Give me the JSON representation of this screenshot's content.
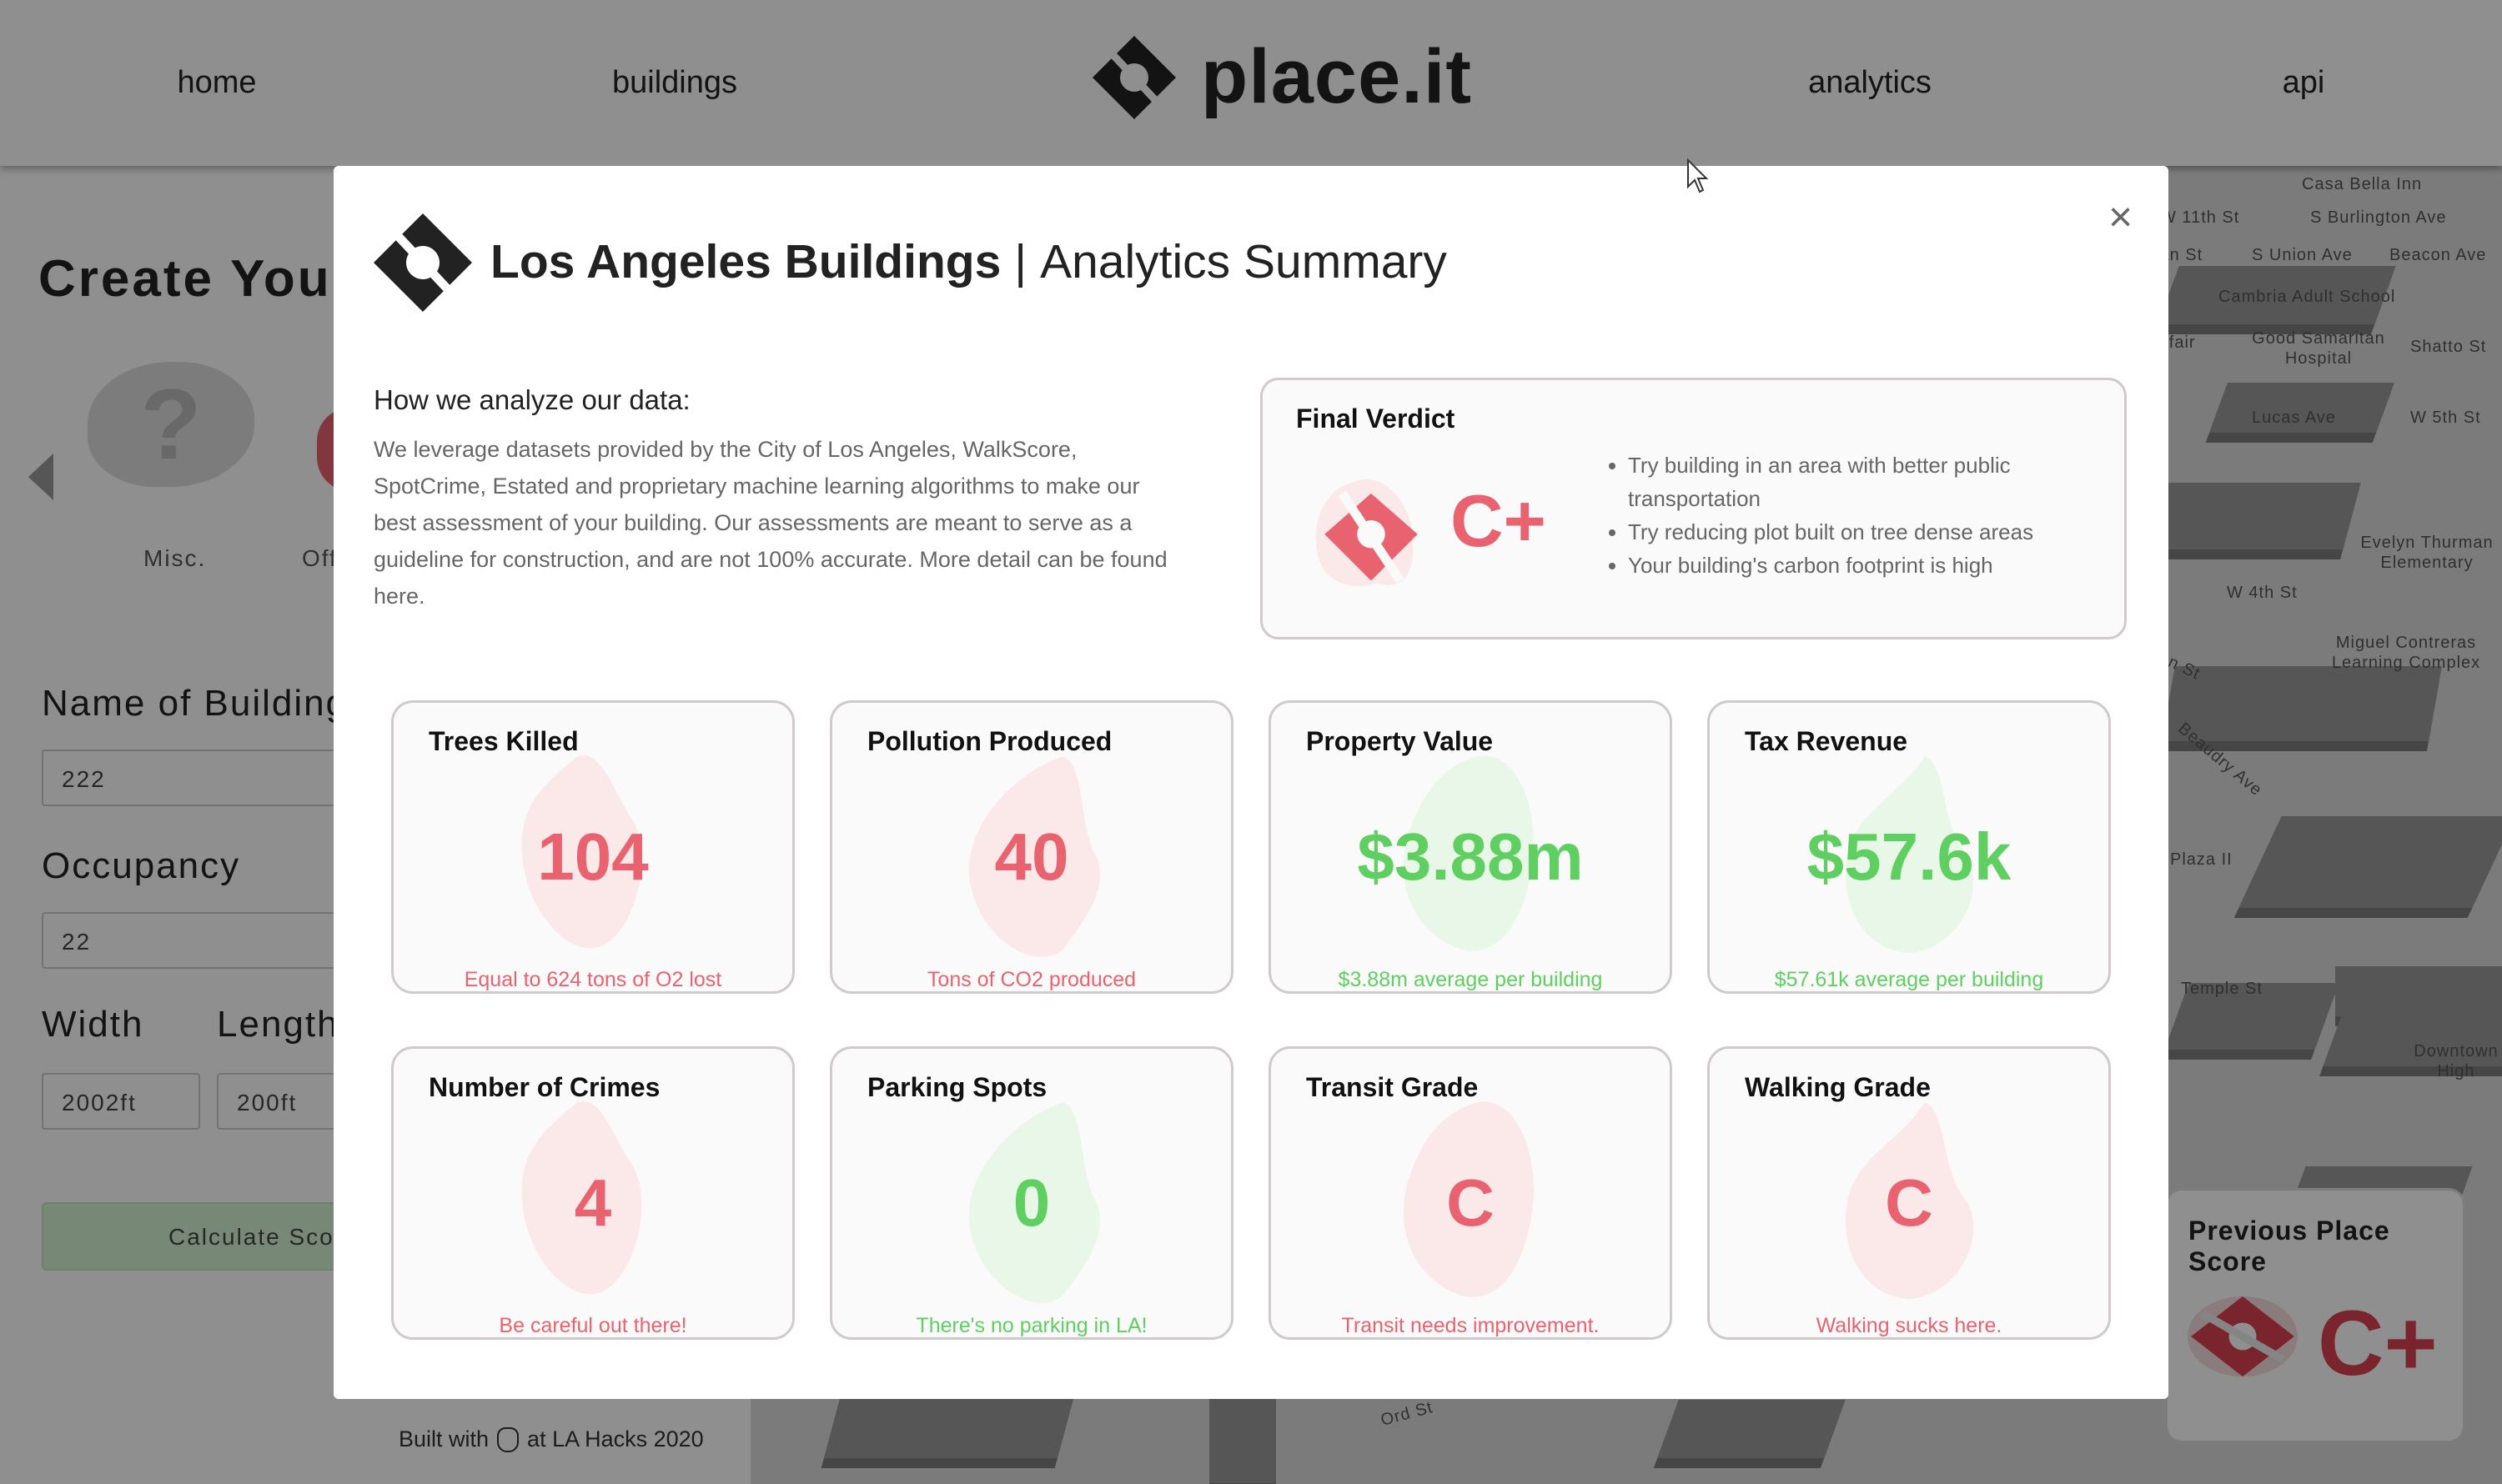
{
  "nav": {
    "home": "home",
    "buildings": "buildings",
    "brand": "place.it",
    "analytics": "analytics",
    "api": "api"
  },
  "background": {
    "create_title": "Create Your",
    "categories": [
      "Misc.",
      "Off"
    ],
    "name_label": "Name of Building",
    "name_value": "222",
    "occupancy_label": "Occupancy",
    "occupancy_value": "22",
    "width_label": "Width",
    "width_value": "2002ft",
    "length_label": "Length",
    "length_value": "200ft",
    "calculate_button": "Calculate Score",
    "footer_before": "Built with",
    "footer_after": "at LA Hacks 2020",
    "previous_score_title": "Previous Place Score",
    "previous_score_grade": "C+",
    "map_labels": [
      "Casa Bella Inn",
      "W 11th St",
      "S Burlington Ave",
      "Beacon Ave",
      "Grattan St",
      "S Union Ave",
      "Cambria Adult School",
      "Mayfair",
      "Good Samaritan Hospital",
      "Shatto St",
      "W 5th St",
      "Lucas Ave",
      "Evelyn Thurman Elementary",
      "W 4th St",
      "Boylston St",
      "Miguel Contreras Learning Complex",
      "Beaudry Ave",
      "Plaza II",
      "Temple St",
      "Downtown High",
      "Ord St"
    ]
  },
  "modal": {
    "title_bold": "Los Angeles Buildings",
    "title_sep": "|",
    "title_rest": "Analytics Summary",
    "close": "×",
    "how_heading": "How we analyze our data:",
    "how_body": "We leverage datasets provided by the City of Los Angeles, WalkScore, SpotCrime, Estated and proprietary machine learning algorithms to make our best assessment of your building. Our assessments are meant to serve as a guideline for construction, and are not 100% accurate. More detail can be found here.",
    "verdict": {
      "title": "Final Verdict",
      "grade": "C+",
      "tips": [
        "Try building in an area with better public transportation",
        "Try reducing plot built on tree dense areas",
        "Your building's carbon footprint is high"
      ]
    },
    "cards": [
      {
        "title": "Trees Killed",
        "value": "104",
        "sub": "Equal to 624 tons of O2 lost",
        "tone": "red"
      },
      {
        "title": "Pollution Produced",
        "value": "40",
        "sub": "Tons of CO2 produced",
        "tone": "red"
      },
      {
        "title": "Property Value",
        "value": "$3.88m",
        "sub": "$3.88m average per building",
        "tone": "green"
      },
      {
        "title": "Tax Revenue",
        "value": "$57.6k",
        "sub": "$57.61k average per building",
        "tone": "green"
      },
      {
        "title": "Number of Crimes",
        "value": "4",
        "sub": "Be careful out there!",
        "tone": "red"
      },
      {
        "title": "Parking Spots",
        "value": "0",
        "sub": "There's no parking in LA!",
        "tone": "green"
      },
      {
        "title": "Transit Grade",
        "value": "C",
        "sub": "Transit needs improvement.",
        "tone": "red"
      },
      {
        "title": "Walking Grade",
        "value": "C",
        "sub": "Walking sucks here.",
        "tone": "red"
      }
    ]
  },
  "colors": {
    "red": "#e8636f",
    "green": "#5ecf60",
    "red_blob": "#fbe9ea",
    "green_blob": "#e9f7e9"
  }
}
